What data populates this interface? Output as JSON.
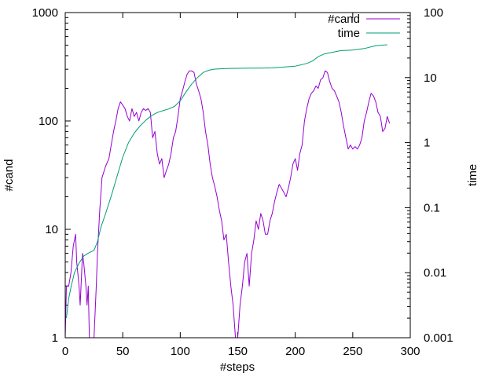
{
  "chart_data": {
    "type": "line",
    "xlabel": "#steps",
    "ylabel": "#cand",
    "y2label": "time",
    "xlim": [
      0,
      300
    ],
    "ylim": [
      1,
      1000
    ],
    "y2lim": [
      0.001,
      100
    ],
    "yscale": "log",
    "y2scale": "log",
    "grid": false,
    "legend": "top-right",
    "x_ticks": [
      "0",
      "50",
      "100",
      "150",
      "200",
      "250",
      "300"
    ],
    "y_ticks": [
      "1",
      "10",
      "100",
      "1000"
    ],
    "y2_ticks": [
      "0.001",
      "0.01",
      "0.1",
      "1",
      "10",
      "100"
    ],
    "series": [
      {
        "name": "#cand",
        "axis": "left",
        "color": "#9400d3",
        "points": [
          [
            0,
            1
          ],
          [
            1,
            3
          ],
          [
            3,
            3
          ],
          [
            5,
            4
          ],
          [
            7,
            7
          ],
          [
            9,
            9
          ],
          [
            10,
            5
          ],
          [
            12,
            3
          ],
          [
            13,
            2
          ],
          [
            15,
            6
          ],
          [
            16,
            5
          ],
          [
            18,
            3
          ],
          [
            19,
            2
          ],
          [
            20,
            3
          ],
          [
            21,
            1
          ],
          [
            23,
            1
          ],
          [
            25,
            1
          ],
          [
            27,
            3
          ],
          [
            28,
            6
          ],
          [
            30,
            15
          ],
          [
            32,
            30
          ],
          [
            35,
            38
          ],
          [
            38,
            45
          ],
          [
            40,
            60
          ],
          [
            42,
            80
          ],
          [
            44,
            100
          ],
          [
            46,
            130
          ],
          [
            48,
            150
          ],
          [
            50,
            140
          ],
          [
            52,
            130
          ],
          [
            54,
            110
          ],
          [
            56,
            100
          ],
          [
            58,
            130
          ],
          [
            60,
            110
          ],
          [
            62,
            120
          ],
          [
            64,
            100
          ],
          [
            66,
            120
          ],
          [
            68,
            130
          ],
          [
            70,
            125
          ],
          [
            72,
            130
          ],
          [
            74,
            120
          ],
          [
            76,
            70
          ],
          [
            78,
            80
          ],
          [
            80,
            50
          ],
          [
            82,
            40
          ],
          [
            84,
            45
          ],
          [
            86,
            30
          ],
          [
            88,
            35
          ],
          [
            90,
            40
          ],
          [
            92,
            50
          ],
          [
            94,
            70
          ],
          [
            96,
            80
          ],
          [
            98,
            110
          ],
          [
            100,
            160
          ],
          [
            102,
            190
          ],
          [
            104,
            230
          ],
          [
            106,
            270
          ],
          [
            108,
            290
          ],
          [
            110,
            290
          ],
          [
            112,
            280
          ],
          [
            114,
            220
          ],
          [
            116,
            190
          ],
          [
            118,
            160
          ],
          [
            120,
            120
          ],
          [
            122,
            80
          ],
          [
            124,
            60
          ],
          [
            126,
            40
          ],
          [
            128,
            30
          ],
          [
            130,
            25
          ],
          [
            132,
            20
          ],
          [
            134,
            15
          ],
          [
            136,
            12
          ],
          [
            138,
            8
          ],
          [
            140,
            9
          ],
          [
            142,
            5
          ],
          [
            144,
            3
          ],
          [
            146,
            2
          ],
          [
            148,
            1
          ],
          [
            150,
            1
          ],
          [
            152,
            2
          ],
          [
            154,
            3
          ],
          [
            156,
            5
          ],
          [
            158,
            6
          ],
          [
            160,
            3
          ],
          [
            162,
            6
          ],
          [
            164,
            8
          ],
          [
            166,
            12
          ],
          [
            168,
            10
          ],
          [
            170,
            14
          ],
          [
            172,
            12
          ],
          [
            174,
            9
          ],
          [
            176,
            9
          ],
          [
            178,
            12
          ],
          [
            180,
            14
          ],
          [
            182,
            18
          ],
          [
            184,
            22
          ],
          [
            186,
            26
          ],
          [
            188,
            24
          ],
          [
            190,
            22
          ],
          [
            192,
            20
          ],
          [
            194,
            24
          ],
          [
            196,
            30
          ],
          [
            198,
            40
          ],
          [
            200,
            45
          ],
          [
            202,
            35
          ],
          [
            204,
            50
          ],
          [
            206,
            60
          ],
          [
            208,
            100
          ],
          [
            210,
            130
          ],
          [
            212,
            160
          ],
          [
            214,
            180
          ],
          [
            216,
            190
          ],
          [
            218,
            210
          ],
          [
            220,
            200
          ],
          [
            222,
            240
          ],
          [
            224,
            250
          ],
          [
            226,
            290
          ],
          [
            228,
            280
          ],
          [
            230,
            230
          ],
          [
            232,
            200
          ],
          [
            234,
            190
          ],
          [
            236,
            170
          ],
          [
            238,
            150
          ],
          [
            240,
            120
          ],
          [
            242,
            90
          ],
          [
            244,
            70
          ],
          [
            246,
            55
          ],
          [
            248,
            60
          ],
          [
            250,
            55
          ],
          [
            252,
            58
          ],
          [
            254,
            55
          ],
          [
            256,
            60
          ],
          [
            258,
            70
          ],
          [
            260,
            100
          ],
          [
            262,
            120
          ],
          [
            264,
            150
          ],
          [
            266,
            180
          ],
          [
            268,
            170
          ],
          [
            270,
            150
          ],
          [
            272,
            120
          ],
          [
            274,
            110
          ],
          [
            276,
            80
          ],
          [
            278,
            85
          ],
          [
            280,
            110
          ],
          [
            282,
            95
          ]
        ]
      },
      {
        "name": "time",
        "axis": "right",
        "color": "#009e73",
        "points": [
          [
            1,
            0.002
          ],
          [
            3,
            0.004
          ],
          [
            5,
            0.006
          ],
          [
            8,
            0.01
          ],
          [
            12,
            0.014
          ],
          [
            16,
            0.018
          ],
          [
            20,
            0.02
          ],
          [
            25,
            0.022
          ],
          [
            28,
            0.03
          ],
          [
            31,
            0.05
          ],
          [
            35,
            0.08
          ],
          [
            40,
            0.15
          ],
          [
            45,
            0.3
          ],
          [
            50,
            0.6
          ],
          [
            55,
            1.0
          ],
          [
            60,
            1.4
          ],
          [
            65,
            1.8
          ],
          [
            70,
            2.2
          ],
          [
            75,
            2.6
          ],
          [
            80,
            2.9
          ],
          [
            85,
            3.1
          ],
          [
            90,
            3.3
          ],
          [
            95,
            3.6
          ],
          [
            100,
            4.4
          ],
          [
            105,
            6.0
          ],
          [
            110,
            8.0
          ],
          [
            115,
            10.0
          ],
          [
            120,
            12.0
          ],
          [
            125,
            13.0
          ],
          [
            130,
            13.5
          ],
          [
            140,
            13.8
          ],
          [
            150,
            13.9
          ],
          [
            160,
            14.0
          ],
          [
            170,
            14.0
          ],
          [
            180,
            14.1
          ],
          [
            190,
            14.5
          ],
          [
            200,
            15.0
          ],
          [
            210,
            16.5
          ],
          [
            215,
            18.0
          ],
          [
            220,
            21.0
          ],
          [
            225,
            23.0
          ],
          [
            230,
            24.0
          ],
          [
            240,
            26.0
          ],
          [
            250,
            26.5
          ],
          [
            260,
            28.0
          ],
          [
            270,
            31.0
          ],
          [
            280,
            32.0
          ]
        ]
      }
    ]
  }
}
